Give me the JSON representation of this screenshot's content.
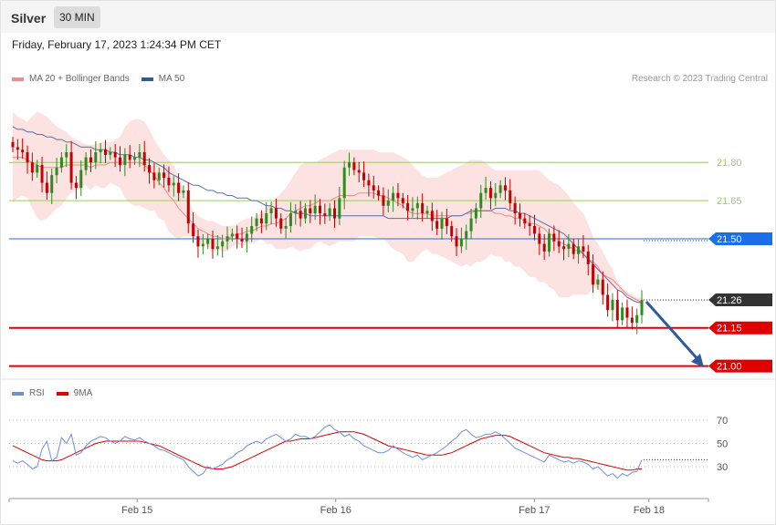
{
  "header": {
    "instrument": "Silver",
    "timeframe": "30 MIN"
  },
  "timestamp": "Friday, February 17, 2023 1:24:34 PM CET",
  "legend": {
    "main": [
      {
        "name": "MA 20 + Bollinger Bands",
        "color": "#f28b8b"
      },
      {
        "name": "MA 50",
        "color": "#2f5a9e"
      }
    ],
    "rsi": [
      {
        "name": "RSI",
        "color": "#6f8ed9"
      },
      {
        "name": "9MA",
        "color": "#e00000"
      }
    ]
  },
  "credit": "Research © 2023 Trading Central",
  "colors": {
    "bull": "#2e8b1e",
    "bear": "#c40000",
    "band_fill": "#fde2e2",
    "ma20": "#f28b8b",
    "ma50": "#5a6fa8",
    "resistance": "#9ccc65",
    "pivot": "#1a6ee8",
    "support": "#e00000",
    "arrow": "#2f5a9e",
    "current": "#333333"
  },
  "chart_data": [
    {
      "type": "candlestick",
      "ylim": [
        20.97,
        22.08
      ],
      "x_ticks": [
        {
          "label": "Feb 15",
          "pos": 0.183
        },
        {
          "label": "Feb 16",
          "pos": 0.467
        },
        {
          "label": "Feb 17",
          "pos": 0.751
        },
        {
          "label": "Feb 18",
          "pos": 0.915
        }
      ],
      "levels": [
        {
          "label": "21.80",
          "value": 21.8,
          "kind": "resistance"
        },
        {
          "label": "21.65",
          "value": 21.65,
          "kind": "resistance"
        },
        {
          "label": "21.50",
          "value": 21.5,
          "kind": "pivot"
        },
        {
          "label": "21.26",
          "value": 21.26,
          "kind": "current"
        },
        {
          "label": "21.15",
          "value": 21.15,
          "kind": "support"
        },
        {
          "label": "21.00",
          "value": 21.0,
          "kind": "support"
        }
      ],
      "close": [
        21.86,
        21.85,
        21.84,
        21.8,
        21.76,
        21.79,
        21.72,
        21.68,
        21.75,
        21.78,
        21.82,
        21.84,
        21.72,
        21.7,
        21.77,
        21.82,
        21.8,
        21.84,
        21.85,
        21.83,
        21.84,
        21.82,
        21.79,
        21.83,
        21.81,
        21.82,
        21.84,
        21.79,
        21.76,
        21.73,
        21.76,
        21.74,
        21.71,
        21.72,
        21.68,
        21.69,
        21.56,
        21.51,
        21.47,
        21.48,
        21.5,
        21.46,
        21.47,
        21.49,
        21.51,
        21.52,
        21.5,
        21.49,
        21.52,
        21.55,
        21.58,
        21.56,
        21.6,
        21.62,
        21.58,
        21.54,
        21.55,
        21.6,
        21.61,
        21.58,
        21.62,
        21.6,
        21.63,
        21.6,
        21.59,
        21.62,
        21.58,
        21.66,
        21.78,
        21.8,
        21.77,
        21.76,
        21.73,
        21.71,
        21.69,
        21.67,
        21.63,
        21.65,
        21.68,
        21.66,
        21.64,
        21.61,
        21.62,
        21.64,
        21.6,
        21.61,
        21.57,
        21.54,
        21.58,
        21.55,
        21.51,
        21.47,
        21.5,
        21.53,
        21.58,
        21.62,
        21.68,
        21.7,
        21.66,
        21.68,
        21.71,
        21.69,
        21.64,
        21.6,
        21.58,
        21.56,
        21.55,
        21.52,
        21.48,
        21.45,
        21.52,
        21.49,
        21.47,
        21.46,
        21.48,
        21.44,
        21.47,
        21.45,
        21.4,
        21.32,
        21.34,
        21.28,
        21.22,
        21.26,
        21.18,
        21.23,
        21.19,
        21.17,
        21.2,
        21.26
      ],
      "bb_upper": [
        22.0,
        21.98,
        21.97,
        21.96,
        21.98,
        22.0,
        21.99,
        21.98,
        21.96,
        21.94,
        21.93,
        21.92,
        21.9,
        21.89,
        21.88,
        21.87,
        21.87,
        21.87,
        21.88,
        21.88,
        21.88,
        21.89,
        21.9,
        21.94,
        21.96,
        21.97,
        21.97,
        21.96,
        21.93,
        21.89,
        21.86,
        21.83,
        21.81,
        21.79,
        21.74,
        21.69,
        21.65,
        21.61,
        21.59,
        21.58,
        21.57,
        21.57,
        21.56,
        21.55,
        21.55,
        21.55,
        21.56,
        21.57,
        21.58,
        21.58,
        21.59,
        21.6,
        21.62,
        21.64,
        21.66,
        21.68,
        21.7,
        21.73,
        21.76,
        21.79,
        21.8,
        21.8,
        21.8,
        21.81,
        21.82,
        21.83,
        21.84,
        21.85,
        21.85,
        21.85,
        21.85,
        21.85,
        21.85,
        21.85,
        21.85,
        21.84,
        21.84,
        21.84,
        21.84,
        21.83,
        21.82,
        21.81,
        21.79,
        21.77,
        21.75,
        21.74,
        21.74,
        21.74,
        21.75,
        21.76,
        21.77,
        21.78,
        21.79,
        21.8,
        21.81,
        21.81,
        21.81,
        21.8,
        21.78,
        21.77,
        21.77,
        21.77,
        21.77,
        21.77,
        21.77,
        21.77,
        21.77,
        21.77,
        21.77,
        21.75,
        21.73,
        21.72,
        21.71,
        21.69,
        21.67,
        21.64,
        21.62,
        21.6,
        21.56,
        21.51,
        21.48,
        21.45,
        21.41,
        21.38,
        21.33,
        21.31,
        21.29,
        21.28,
        21.27,
        21.27
      ],
      "ma20": [
        21.82,
        21.82,
        21.82,
        21.81,
        21.8,
        21.79,
        21.78,
        21.78,
        21.78,
        21.78,
        21.78,
        21.79,
        21.79,
        21.79,
        21.79,
        21.79,
        21.78,
        21.79,
        21.79,
        21.79,
        21.8,
        21.8,
        21.8,
        21.8,
        21.8,
        21.8,
        21.8,
        21.79,
        21.77,
        21.75,
        21.72,
        21.7,
        21.67,
        21.65,
        21.62,
        21.6,
        21.58,
        21.56,
        21.54,
        21.53,
        21.52,
        21.51,
        21.51,
        21.5,
        21.5,
        21.51,
        21.52,
        21.52,
        21.53,
        21.53,
        21.54,
        21.55,
        21.55,
        21.56,
        21.56,
        21.57,
        21.58,
        21.6,
        21.61,
        21.62,
        21.63,
        21.63,
        21.64,
        21.65,
        21.65,
        21.65,
        21.66,
        21.67,
        21.67,
        21.67,
        21.67,
        21.68,
        21.68,
        21.68,
        21.68,
        21.67,
        21.67,
        21.66,
        21.65,
        21.64,
        21.63,
        21.61,
        21.6,
        21.6,
        21.6,
        21.6,
        21.59,
        21.59,
        21.59,
        21.59,
        21.59,
        21.59,
        21.59,
        21.6,
        21.6,
        21.61,
        21.61,
        21.61,
        21.61,
        21.6,
        21.6,
        21.59,
        21.59,
        21.58,
        21.58,
        21.57,
        21.56,
        21.56,
        21.55,
        21.54,
        21.52,
        21.51,
        21.49,
        21.48,
        21.47,
        21.46,
        21.45,
        21.44,
        21.42,
        21.41,
        21.39,
        21.36,
        21.35,
        21.34,
        21.32,
        21.3,
        21.28,
        21.27,
        21.26,
        21.25
      ],
      "ma50": [
        21.94,
        21.93,
        21.93,
        21.92,
        21.92,
        21.91,
        21.91,
        21.9,
        21.9,
        21.89,
        21.89,
        21.88,
        21.88,
        21.87,
        21.86,
        21.86,
        21.86,
        21.85,
        21.85,
        21.85,
        21.84,
        21.84,
        21.83,
        21.83,
        21.83,
        21.82,
        21.82,
        21.81,
        21.81,
        21.8,
        21.79,
        21.78,
        21.76,
        21.75,
        21.74,
        21.73,
        21.72,
        21.71,
        21.71,
        21.7,
        21.69,
        21.69,
        21.68,
        21.68,
        21.67,
        21.67,
        21.66,
        21.66,
        21.66,
        21.65,
        21.65,
        21.64,
        21.63,
        21.63,
        21.62,
        21.62,
        21.61,
        21.61,
        21.6,
        21.6,
        21.6,
        21.59,
        21.59,
        21.59,
        21.59,
        21.59,
        21.59,
        21.59,
        21.59,
        21.59,
        21.59,
        21.59,
        21.59,
        21.59,
        21.59,
        21.59,
        21.59,
        21.58,
        21.58,
        21.58,
        21.58,
        21.58,
        21.58,
        21.58,
        21.58,
        21.58,
        21.58,
        21.58,
        21.58,
        21.58,
        21.59,
        21.59,
        21.59,
        21.6,
        21.61,
        21.61,
        21.61,
        21.61,
        21.61,
        21.62,
        21.62,
        21.62,
        21.61,
        21.61,
        21.6,
        21.6,
        21.59,
        21.58,
        21.57,
        21.56,
        21.55,
        21.54,
        21.53,
        21.52,
        21.5,
        21.48,
        21.46,
        21.44,
        21.42,
        21.4,
        21.38,
        21.36,
        21.34,
        21.32,
        21.3,
        21.29,
        21.27,
        21.26,
        21.25,
        21.25
      ]
    },
    {
      "type": "line",
      "title": "RSI",
      "ylim": [
        8,
        85
      ],
      "y_ticks": [
        70,
        50,
        30
      ],
      "series": [
        {
          "name": "RSI",
          "values": [
            35,
            33,
            35,
            32,
            28,
            30,
            45,
            52,
            35,
            38,
            55,
            50,
            58,
            40,
            42,
            48,
            52,
            54,
            56,
            55,
            52,
            50,
            52,
            56,
            54,
            53,
            55,
            52,
            50,
            48,
            45,
            44,
            42,
            40,
            38,
            36,
            30,
            26,
            22,
            24,
            30,
            28,
            30,
            32,
            36,
            38,
            42,
            44,
            48,
            50,
            52,
            50,
            54,
            56,
            58,
            55,
            52,
            54,
            58,
            56,
            56,
            54,
            56,
            60,
            64,
            66,
            62,
            60,
            56,
            58,
            54,
            52,
            48,
            46,
            44,
            42,
            42,
            44,
            48,
            45,
            42,
            40,
            38,
            40,
            36,
            38,
            40,
            42,
            45,
            48,
            52,
            55,
            60,
            62,
            58,
            55,
            56,
            58,
            58,
            60,
            58,
            54,
            50,
            46,
            44,
            42,
            40,
            38,
            36,
            34,
            40,
            38,
            36,
            34,
            35,
            33,
            35,
            34,
            32,
            28,
            30,
            26,
            22,
            24,
            20,
            24,
            22,
            25,
            26,
            36
          ]
        },
        {
          "name": "9MA",
          "values": [
            48,
            46,
            44,
            42,
            40,
            38,
            36,
            35,
            35,
            35,
            36,
            38,
            40,
            42,
            44,
            46,
            48,
            50,
            51,
            52,
            52,
            52,
            52,
            52,
            52,
            52,
            52,
            51,
            50,
            49,
            48,
            46,
            44,
            42,
            40,
            38,
            36,
            34,
            32,
            30,
            29,
            28,
            28,
            28,
            29,
            30,
            32,
            34,
            36,
            38,
            40,
            42,
            44,
            46,
            48,
            50,
            52,
            52,
            53,
            54,
            54,
            54,
            55,
            56,
            57,
            58,
            59,
            60,
            60,
            60,
            60,
            59,
            58,
            56,
            54,
            52,
            50,
            48,
            47,
            46,
            45,
            44,
            43,
            42,
            41,
            40,
            40,
            40,
            40,
            41,
            42,
            44,
            46,
            48,
            50,
            52,
            54,
            55,
            56,
            57,
            57,
            57,
            56,
            54,
            52,
            50,
            48,
            46,
            44,
            42,
            41,
            40,
            39,
            38,
            38,
            37,
            37,
            36,
            35,
            34,
            33,
            32,
            31,
            30,
            29,
            28,
            27,
            27,
            28,
            28
          ]
        }
      ]
    }
  ]
}
